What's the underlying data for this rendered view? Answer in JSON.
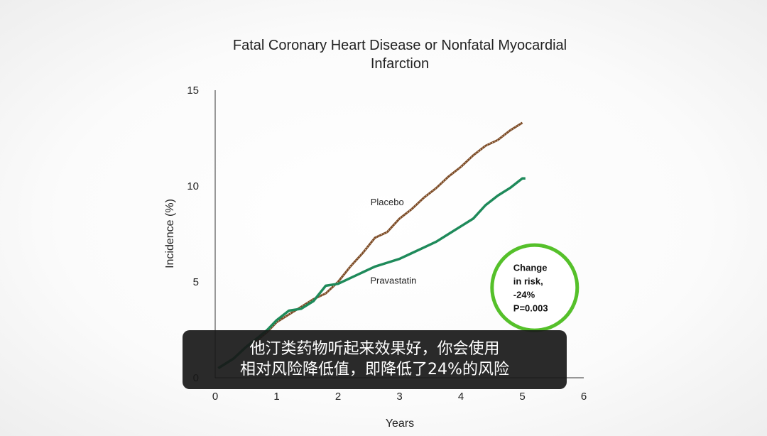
{
  "chart_data": {
    "type": "line",
    "title_lines": [
      "Fatal Coronary Heart Disease or Nonfatal Myocardial",
      "Infarction"
    ],
    "xlabel": "Years",
    "ylabel": "Incidence (%)",
    "xlim": [
      0,
      6
    ],
    "ylim": [
      0,
      15
    ],
    "x_ticks": [
      "0",
      "1",
      "2",
      "3",
      "4",
      "5",
      "6"
    ],
    "y_ticks": [
      "0",
      "5",
      "10",
      "15"
    ],
    "grid": false,
    "series": [
      {
        "name": "Placebo",
        "color": "#7b4a26",
        "style": "dotted",
        "x": [
          0.05,
          0.3,
          0.5,
          0.7,
          0.85,
          1.0,
          1.2,
          1.4,
          1.6,
          1.8,
          2.0,
          2.2,
          2.4,
          2.6,
          2.8,
          3.0,
          3.2,
          3.4,
          3.6,
          3.8,
          4.0,
          4.2,
          4.4,
          4.6,
          4.8,
          5.0
        ],
        "y": [
          0.5,
          1.0,
          1.6,
          2.0,
          2.4,
          2.9,
          3.3,
          3.7,
          4.1,
          4.4,
          5.0,
          5.8,
          6.5,
          7.3,
          7.6,
          8.3,
          8.8,
          9.4,
          9.9,
          10.5,
          11.0,
          11.6,
          12.1,
          12.4,
          12.9,
          13.3
        ]
      },
      {
        "name": "Pravastatin",
        "color": "#1e8a5a",
        "style": "solid",
        "x": [
          0.05,
          0.3,
          0.5,
          0.7,
          0.85,
          1.0,
          1.2,
          1.4,
          1.6,
          1.8,
          2.0,
          2.2,
          2.4,
          2.6,
          2.8,
          3.0,
          3.2,
          3.4,
          3.6,
          3.8,
          4.0,
          4.2,
          4.4,
          4.6,
          4.8,
          5.0,
          5.05
        ],
        "y": [
          0.5,
          1.0,
          1.6,
          2.1,
          2.5,
          3.0,
          3.5,
          3.6,
          4.0,
          4.8,
          4.9,
          5.2,
          5.5,
          5.8,
          6.0,
          6.2,
          6.5,
          6.8,
          7.1,
          7.5,
          7.9,
          8.3,
          9.0,
          9.5,
          9.9,
          10.4,
          10.4
        ]
      }
    ],
    "annotations": {
      "placebo_label": "Placebo",
      "pravastatin_label": "Pravastatin",
      "placebo_label_at": [
        2.8,
        9.0
      ],
      "pravastatin_label_at": [
        2.9,
        4.9
      ]
    },
    "badge": {
      "lines": [
        "Change",
        "in risk,",
        "-24%",
        "P=0.003"
      ],
      "ring_color": "#55c02a",
      "center_at": [
        5.2,
        4.7
      ]
    }
  },
  "subtitle": {
    "line1": "他汀类药物听起来效果好，你会使用",
    "line2": "相对风险降低值，即降低了24%的风险"
  }
}
